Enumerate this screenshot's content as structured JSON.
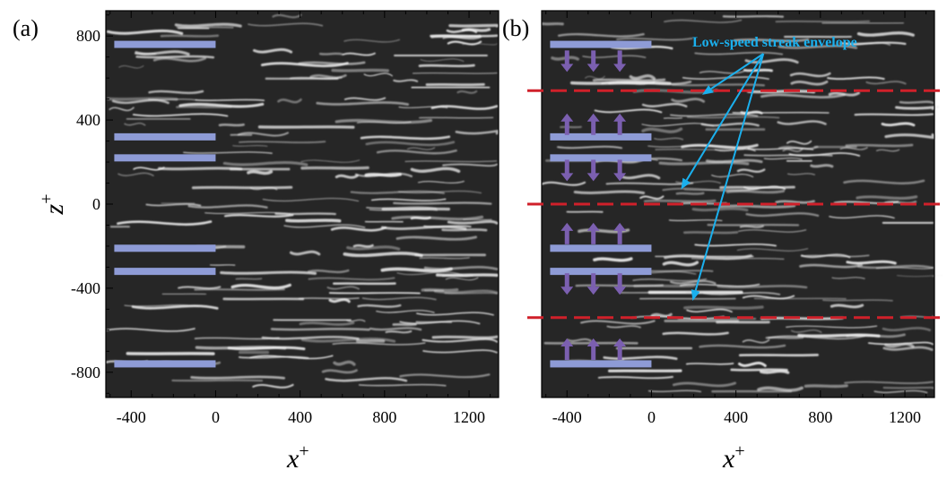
{
  "panels": [
    {
      "label": "(a)",
      "ticks_x": [
        "-400",
        "0",
        "400",
        "800",
        "1200"
      ],
      "ticks_y": [
        "800",
        "400",
        "0",
        "-400",
        "-800"
      ],
      "xlabel": "x",
      "xlabel_sup": "+",
      "ylabel": "z",
      "ylabel_sup": "+"
    },
    {
      "label": "(b)",
      "ticks_x": [
        "-400",
        "0",
        "400",
        "800",
        "1200"
      ],
      "xlabel": "x",
      "xlabel_sup": "+",
      "annotation": "Low-speed streak envelope"
    }
  ],
  "colors": {
    "strip": "#8e9bd6",
    "arrow": "#7b5fb0",
    "dashed_line": "#d0202a",
    "annotation": "#1ab0ee",
    "image_bg": "#262626"
  },
  "axes": {
    "x_range": [
      -520,
      1340
    ],
    "z_range": [
      -920,
      920
    ]
  },
  "forcing": {
    "strips_z": [
      760,
      320,
      220,
      -210,
      -320,
      -760
    ],
    "strip_x_range": [
      -480,
      0
    ],
    "arrows_x": [
      -400,
      -275,
      -150
    ],
    "arrow_groups": [
      {
        "z": 680,
        "dir": "down"
      },
      {
        "z": 380,
        "dir": "up"
      },
      {
        "z": 160,
        "dir": "down"
      },
      {
        "z": -140,
        "dir": "up"
      },
      {
        "z": -380,
        "dir": "down"
      },
      {
        "z": -690,
        "dir": "up"
      }
    ]
  },
  "streak_envelope_z": [
    540,
    0,
    -540
  ]
}
